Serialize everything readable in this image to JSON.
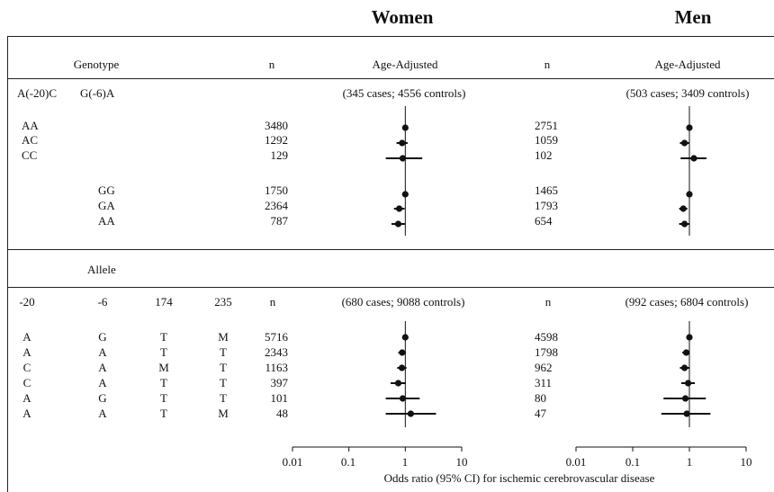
{
  "headers": {
    "women": "Women",
    "men": "Men"
  },
  "section1": {
    "genotype_label": "Genotype",
    "n_label": "n",
    "age_adj_label": "Age-Adjusted",
    "snp1": "A(-20)C",
    "snp2": "G(-6)A",
    "women_cases": "(345 cases; 4556 controls)",
    "men_cases": "(503 cases; 3409 controls)",
    "rows": [
      {
        "c1": "AA",
        "c2": "",
        "women_n": "3480",
        "men_n": "2751"
      },
      {
        "c1": "AC",
        "c2": "",
        "women_n": "1292",
        "men_n": "1059"
      },
      {
        "c1": "CC",
        "c2": "",
        "women_n": "129",
        "men_n": "102"
      },
      {
        "c1": "",
        "c2": "GG",
        "women_n": "1750",
        "men_n": "1465"
      },
      {
        "c1": "",
        "c2": "GA",
        "women_n": "2364",
        "men_n": "1793"
      },
      {
        "c1": "",
        "c2": "AA",
        "women_n": "787",
        "men_n": "654"
      }
    ]
  },
  "section2": {
    "allele_label": "Allele",
    "cols": [
      "-20",
      "-6",
      "174",
      "235"
    ],
    "n_label": "n",
    "women_cases": "(680 cases; 9088 controls)",
    "men_cases": "(992 cases; 6804 controls)",
    "rows": [
      {
        "a": "A",
        "b": "G",
        "c": "T",
        "d": "M",
        "women_n": "5716",
        "men_n": "4598"
      },
      {
        "a": "A",
        "b": "A",
        "c": "T",
        "d": "T",
        "women_n": "2343",
        "men_n": "1798"
      },
      {
        "a": "C",
        "b": "A",
        "c": "M",
        "d": "T",
        "women_n": "1163",
        "men_n": "962"
      },
      {
        "a": "C",
        "b": "A",
        "c": "T",
        "d": "T",
        "women_n": "397",
        "men_n": "311"
      },
      {
        "a": "A",
        "b": "G",
        "c": "T",
        "d": "T",
        "women_n": "101",
        "men_n": "80"
      },
      {
        "a": "A",
        "b": "A",
        "c": "T",
        "d": "M",
        "women_n": "48",
        "men_n": "47"
      }
    ]
  },
  "axis": {
    "ticks": [
      "0.01",
      "0.1",
      "1",
      "10"
    ],
    "xlabel": "Odds ratio (95% CI) for ischemic cerebrovascular disease"
  },
  "chart_data": [
    {
      "type": "scatter",
      "title": "Women",
      "xscale": "log",
      "xlim": [
        0.01,
        10
      ],
      "xticks": [
        0.01,
        0.1,
        1,
        10
      ],
      "reference_line": 1,
      "series": [
        {
          "rows": [
            "AA",
            "AC",
            "CC",
            "GG",
            "GA",
            "AA"
          ],
          "or": [
            1.0,
            0.88,
            0.9,
            1.0,
            0.78,
            0.75
          ],
          "lo": [
            1.0,
            0.7,
            0.45,
            1.0,
            0.63,
            0.57
          ],
          "hi": [
            1.0,
            1.1,
            2.0,
            1.0,
            0.97,
            1.0
          ]
        },
        {
          "rows": [
            "AGTM",
            "AATT",
            "CAMT",
            "CATT",
            "AGTT",
            "AATM"
          ],
          "or": [
            1.0,
            0.88,
            0.87,
            0.75,
            0.9,
            1.25
          ],
          "lo": [
            1.0,
            0.75,
            0.72,
            0.55,
            0.45,
            0.45
          ],
          "hi": [
            1.0,
            1.02,
            1.05,
            1.02,
            1.8,
            3.5
          ]
        }
      ]
    },
    {
      "type": "scatter",
      "title": "Men",
      "xscale": "log",
      "xlim": [
        0.01,
        10
      ],
      "xticks": [
        0.01,
        0.1,
        1,
        10
      ],
      "reference_line": 1,
      "series": [
        {
          "rows": [
            "AA",
            "AC",
            "CC",
            "GG",
            "GA",
            "AA"
          ],
          "or": [
            1.0,
            0.82,
            1.2,
            1.0,
            0.78,
            0.82
          ],
          "lo": [
            1.0,
            0.68,
            0.7,
            1.0,
            0.66,
            0.66
          ],
          "hi": [
            1.0,
            0.98,
            2.0,
            1.0,
            0.92,
            1.02
          ]
        },
        {
          "rows": [
            "AGTM",
            "AATT",
            "CAMT",
            "CATT",
            "AGTT",
            "AATM"
          ],
          "or": [
            1.0,
            0.88,
            0.82,
            0.95,
            0.85,
            0.9
          ],
          "lo": [
            1.0,
            0.75,
            0.68,
            0.72,
            0.35,
            0.32
          ],
          "hi": [
            1.0,
            1.02,
            1.02,
            1.25,
            1.95,
            2.35
          ]
        }
      ]
    }
  ]
}
